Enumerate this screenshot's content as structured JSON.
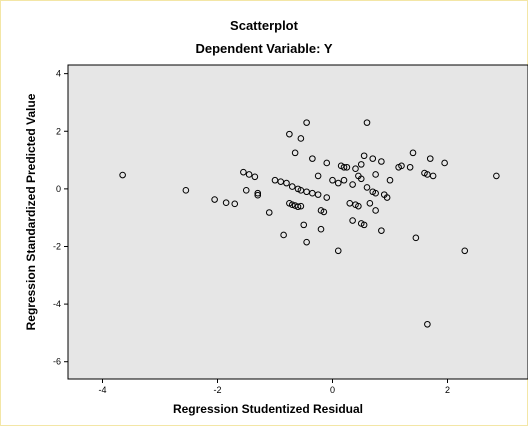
{
  "chart_data": {
    "type": "scatter",
    "title": "Scatterplot",
    "subtitle": "Dependent Variable: Y",
    "xlabel": "Regression Studentized Residual",
    "ylabel": "Regression Standardized Predicted Value",
    "xlim": [
      -4.6,
      3.4
    ],
    "ylim": [
      -6.6,
      4.3
    ],
    "xticks": [
      -4,
      -2,
      0,
      2
    ],
    "yticks": [
      -6,
      -4,
      -2,
      0,
      2,
      4
    ],
    "grid": false,
    "background": "#e6e6e6",
    "marker_color": "#000000",
    "points": [
      [
        -3.65,
        0.48
      ],
      [
        -2.55,
        -0.05
      ],
      [
        -2.05,
        -0.37
      ],
      [
        -1.85,
        -0.48
      ],
      [
        -1.7,
        -0.52
      ],
      [
        -1.55,
        0.58
      ],
      [
        -1.45,
        0.5
      ],
      [
        -1.35,
        0.42
      ],
      [
        -1.5,
        -0.05
      ],
      [
        -1.3,
        -0.15
      ],
      [
        -1.3,
        -0.22
      ],
      [
        -1.1,
        -0.82
      ],
      [
        -1.0,
        0.3
      ],
      [
        -0.9,
        0.25
      ],
      [
        -0.8,
        0.2
      ],
      [
        -0.7,
        0.08
      ],
      [
        -0.6,
        0.0
      ],
      [
        -0.55,
        -0.05
      ],
      [
        -0.45,
        -0.1
      ],
      [
        -0.35,
        -0.15
      ],
      [
        -0.25,
        -0.2
      ],
      [
        -0.1,
        -0.3
      ],
      [
        -0.75,
        -0.5
      ],
      [
        -0.7,
        -0.55
      ],
      [
        -0.65,
        -0.58
      ],
      [
        -0.6,
        -0.62
      ],
      [
        -0.55,
        -0.6
      ],
      [
        -0.2,
        -0.75
      ],
      [
        -0.15,
        -0.8
      ],
      [
        -0.5,
        -1.25
      ],
      [
        -0.45,
        -1.85
      ],
      [
        -0.2,
        -1.4
      ],
      [
        -0.85,
        -1.6
      ],
      [
        -0.75,
        1.9
      ],
      [
        -0.65,
        1.25
      ],
      [
        -0.55,
        1.75
      ],
      [
        -0.45,
        2.3
      ],
      [
        -0.35,
        1.05
      ],
      [
        -0.25,
        0.45
      ],
      [
        -0.1,
        0.9
      ],
      [
        0.0,
        0.3
      ],
      [
        0.1,
        0.2
      ],
      [
        0.2,
        0.3
      ],
      [
        0.35,
        0.15
      ],
      [
        0.45,
        0.45
      ],
      [
        0.5,
        0.35
      ],
      [
        0.15,
        0.8
      ],
      [
        0.2,
        0.75
      ],
      [
        0.25,
        0.75
      ],
      [
        0.4,
        0.7
      ],
      [
        0.5,
        0.85
      ],
      [
        0.55,
        1.15
      ],
      [
        0.6,
        2.3
      ],
      [
        0.7,
        1.05
      ],
      [
        0.75,
        0.5
      ],
      [
        0.85,
        0.95
      ],
      [
        0.6,
        0.05
      ],
      [
        0.7,
        -0.1
      ],
      [
        0.75,
        -0.15
      ],
      [
        0.9,
        -0.2
      ],
      [
        0.95,
        -0.3
      ],
      [
        0.65,
        -0.5
      ],
      [
        0.75,
        -0.75
      ],
      [
        0.3,
        -0.5
      ],
      [
        0.4,
        -0.55
      ],
      [
        0.45,
        -0.6
      ],
      [
        0.35,
        -1.1
      ],
      [
        0.5,
        -1.2
      ],
      [
        0.55,
        -1.25
      ],
      [
        0.85,
        -1.45
      ],
      [
        1.0,
        0.3
      ],
      [
        1.15,
        0.75
      ],
      [
        1.2,
        0.8
      ],
      [
        1.35,
        0.75
      ],
      [
        1.4,
        1.25
      ],
      [
        1.6,
        0.55
      ],
      [
        1.65,
        0.5
      ],
      [
        1.7,
        1.05
      ],
      [
        1.75,
        0.45
      ],
      [
        1.95,
        0.9
      ],
      [
        1.45,
        -1.7
      ],
      [
        1.65,
        -4.7
      ],
      [
        2.3,
        -2.15
      ],
      [
        2.85,
        0.45
      ],
      [
        0.1,
        -2.15
      ]
    ]
  }
}
